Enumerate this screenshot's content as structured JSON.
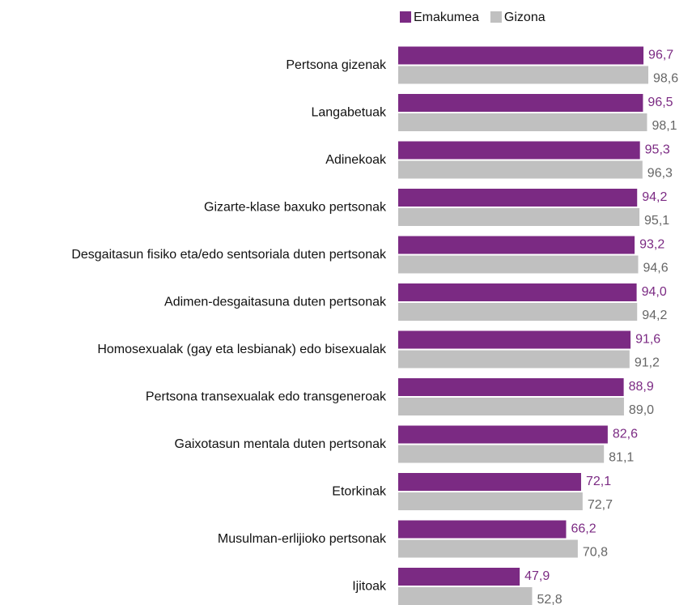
{
  "chart_data": {
    "type": "bar",
    "orientation": "horizontal",
    "categories": [
      "Pertsona gizenak",
      "Langabetuak",
      "Adinekoak",
      "Gizarte-klase baxuko pertsonak",
      "Desgaitasun fisiko eta/edo sentsoriala duten pertsonak",
      "Adimen-desgaitasuna duten pertsonak",
      "Homosexualak (gay eta lesbianak) edo bisexualak",
      "Pertsona transexualak edo transgeneroak",
      "Gaixotasun mentala duten pertsonak",
      "Etorkinak",
      "Musulman-erlijioko pertsonak",
      "Ijitoak"
    ],
    "series": [
      {
        "name": "Emakumea",
        "color": "#7b2a83",
        "label_color": "#7b2a83",
        "values": [
          96.7,
          96.5,
          95.3,
          94.2,
          93.2,
          94.0,
          91.6,
          88.9,
          82.6,
          72.1,
          66.2,
          47.9
        ],
        "value_labels": [
          "96,7",
          "96,5",
          "95,3",
          "94,2",
          "93,2",
          "94,0",
          "91,6",
          "88,9",
          "82,6",
          "72,1",
          "66,2",
          "47,9"
        ]
      },
      {
        "name": "Gizona",
        "color": "#c0c0c0",
        "label_color": "#666666",
        "values": [
          98.6,
          98.1,
          96.3,
          95.1,
          94.6,
          94.2,
          91.2,
          89.0,
          81.1,
          72.7,
          70.8,
          52.8
        ],
        "value_labels": [
          "98,6",
          "98,1",
          "96,3",
          "95,1",
          "94,6",
          "94,2",
          "91,2",
          "89,0",
          "81,1",
          "72,7",
          "70,8",
          "52,8"
        ]
      }
    ],
    "legend": "top"
  }
}
